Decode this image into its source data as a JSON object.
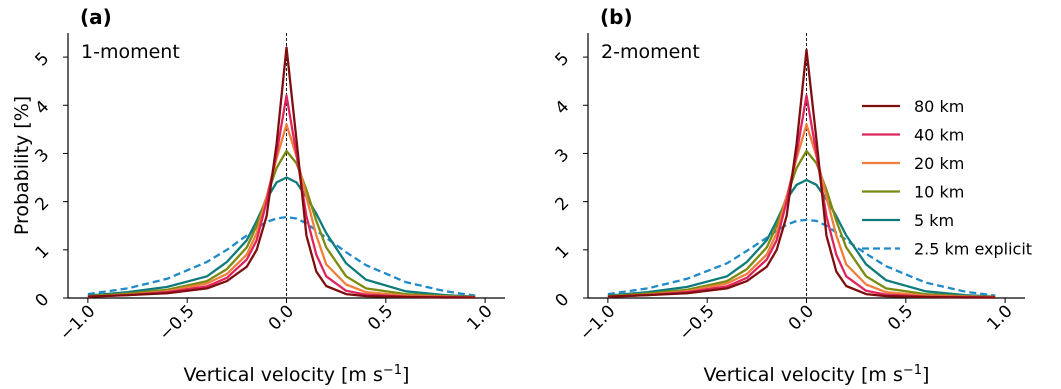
{
  "chart_data": [
    {
      "type": "line",
      "panel_label": "(a)",
      "annotation": "1-moment",
      "xlabel": "Vertical velocity [m s",
      "xlabel_exp": "−1",
      "xlabel_close": "]",
      "ylabel": "Probability [%]",
      "xlim": [
        -1.1,
        1.1
      ],
      "ylim": [
        0,
        5.5
      ],
      "xticks": [
        "−1.0",
        "−0.5",
        "0.0",
        "0.5",
        "1.0"
      ],
      "xtick_values": [
        -1.0,
        -0.5,
        0.0,
        0.5,
        1.0
      ],
      "yticks": [
        "0",
        "1",
        "2",
        "3",
        "4",
        "5"
      ],
      "ytick_values": [
        0,
        1,
        2,
        3,
        4,
        5
      ],
      "vline_x": 0.0,
      "x": [
        -1.0,
        -0.8,
        -0.6,
        -0.4,
        -0.3,
        -0.2,
        -0.15,
        -0.1,
        -0.05,
        0.0,
        0.05,
        0.1,
        0.15,
        0.2,
        0.3,
        0.4,
        0.6,
        0.8,
        0.95
      ],
      "series": [
        {
          "name": "80 km",
          "color": "#7f0f0f",
          "dash": false,
          "values": [
            0.03,
            0.06,
            0.1,
            0.2,
            0.35,
            0.65,
            1.0,
            1.7,
            3.2,
            5.2,
            3.3,
            1.3,
            0.55,
            0.25,
            0.08,
            0.04,
            0.02,
            0.01,
            0.01
          ]
        },
        {
          "name": "40 km",
          "color": "#e0245e",
          "dash": false,
          "values": [
            0.03,
            0.06,
            0.12,
            0.24,
            0.42,
            0.8,
            1.2,
            2.0,
            3.0,
            4.2,
            3.0,
            1.7,
            0.9,
            0.45,
            0.15,
            0.07,
            0.03,
            0.02,
            0.01
          ]
        },
        {
          "name": "20 km",
          "color": "#f07f3c",
          "dash": false,
          "values": [
            0.03,
            0.07,
            0.14,
            0.3,
            0.5,
            0.9,
            1.35,
            2.1,
            2.9,
            3.6,
            2.95,
            2.1,
            1.3,
            0.7,
            0.28,
            0.12,
            0.05,
            0.03,
            0.02
          ]
        },
        {
          "name": "10 km",
          "color": "#7b8a10",
          "dash": false,
          "values": [
            0.04,
            0.09,
            0.17,
            0.35,
            0.6,
            1.05,
            1.5,
            2.1,
            2.7,
            3.05,
            2.8,
            2.25,
            1.6,
            1.05,
            0.45,
            0.2,
            0.08,
            0.04,
            0.02
          ]
        },
        {
          "name": "5 km",
          "color": "#0f7b7b",
          "dash": false,
          "values": [
            0.05,
            0.12,
            0.23,
            0.45,
            0.75,
            1.2,
            1.6,
            2.05,
            2.4,
            2.5,
            2.4,
            2.1,
            1.75,
            1.35,
            0.72,
            0.38,
            0.14,
            0.06,
            0.03
          ]
        },
        {
          "name": "2.5 km explicit",
          "color": "#1f8ac9",
          "dash": true,
          "values": [
            0.08,
            0.2,
            0.4,
            0.75,
            1.0,
            1.3,
            1.45,
            1.58,
            1.65,
            1.68,
            1.65,
            1.55,
            1.4,
            1.25,
            0.95,
            0.68,
            0.33,
            0.14,
            0.05
          ]
        }
      ]
    },
    {
      "type": "line",
      "panel_label": "(b)",
      "annotation": "2-moment",
      "xlabel": "Vertical velocity [m s",
      "xlabel_exp": "−1",
      "xlabel_close": "]",
      "ylabel": "",
      "xlim": [
        -1.1,
        1.1
      ],
      "ylim": [
        0,
        5.5
      ],
      "xticks": [
        "−1.0",
        "−0.5",
        "0.0",
        "0.5",
        "1.0"
      ],
      "xtick_values": [
        -1.0,
        -0.5,
        0.0,
        0.5,
        1.0
      ],
      "yticks": [
        "0",
        "1",
        "2",
        "3",
        "4",
        "5"
      ],
      "ytick_values": [
        0,
        1,
        2,
        3,
        4,
        5
      ],
      "vline_x": 0.0,
      "legend_position": "right",
      "x": [
        -1.0,
        -0.8,
        -0.6,
        -0.4,
        -0.3,
        -0.2,
        -0.15,
        -0.1,
        -0.05,
        0.0,
        0.05,
        0.1,
        0.15,
        0.2,
        0.3,
        0.4,
        0.6,
        0.8,
        0.95
      ],
      "series": [
        {
          "name": "80 km",
          "color": "#7f0f0f",
          "dash": false,
          "values": [
            0.03,
            0.06,
            0.1,
            0.2,
            0.35,
            0.65,
            1.0,
            1.7,
            3.2,
            5.15,
            3.3,
            1.3,
            0.55,
            0.25,
            0.08,
            0.04,
            0.02,
            0.01,
            0.01
          ]
        },
        {
          "name": "40 km",
          "color": "#e0245e",
          "dash": false,
          "values": [
            0.03,
            0.06,
            0.12,
            0.24,
            0.42,
            0.8,
            1.2,
            2.0,
            3.0,
            4.2,
            3.0,
            1.7,
            0.9,
            0.45,
            0.15,
            0.07,
            0.03,
            0.02,
            0.01
          ]
        },
        {
          "name": "20 km",
          "color": "#f07f3c",
          "dash": false,
          "values": [
            0.03,
            0.07,
            0.14,
            0.3,
            0.5,
            0.9,
            1.35,
            2.1,
            2.9,
            3.6,
            2.95,
            2.1,
            1.3,
            0.7,
            0.28,
            0.12,
            0.05,
            0.03,
            0.02
          ]
        },
        {
          "name": "10 km",
          "color": "#7b8a10",
          "dash": false,
          "values": [
            0.04,
            0.09,
            0.17,
            0.35,
            0.6,
            1.05,
            1.5,
            2.1,
            2.7,
            3.05,
            2.8,
            2.25,
            1.6,
            1.05,
            0.45,
            0.2,
            0.08,
            0.04,
            0.02
          ]
        },
        {
          "name": "5 km",
          "color": "#0f7b7b",
          "dash": false,
          "values": [
            0.05,
            0.12,
            0.23,
            0.45,
            0.75,
            1.2,
            1.6,
            2.05,
            2.35,
            2.45,
            2.35,
            2.05,
            1.7,
            1.3,
            0.7,
            0.37,
            0.14,
            0.06,
            0.03
          ]
        },
        {
          "name": "2.5 km explicit",
          "color": "#1f8ac9",
          "dash": true,
          "values": [
            0.08,
            0.2,
            0.4,
            0.72,
            0.98,
            1.25,
            1.4,
            1.52,
            1.6,
            1.62,
            1.6,
            1.5,
            1.36,
            1.2,
            0.92,
            0.66,
            0.32,
            0.13,
            0.05
          ]
        }
      ]
    }
  ]
}
